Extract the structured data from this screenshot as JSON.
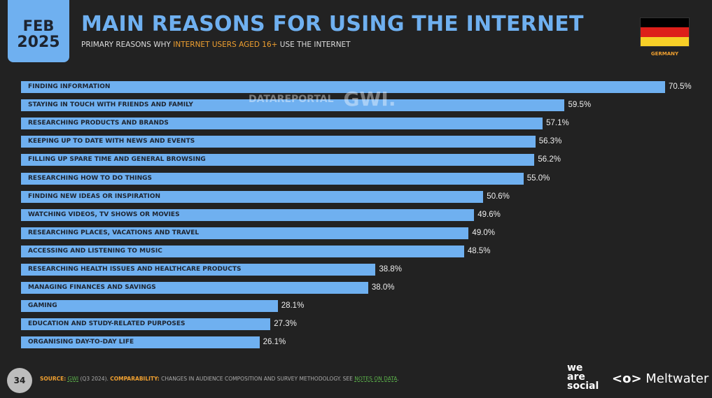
{
  "header": {
    "month": "FEB",
    "year": "2025",
    "title": "MAIN REASONS FOR USING THE INTERNET",
    "subtitle_pre": "PRIMARY REASONS WHY ",
    "subtitle_highlight": "INTERNET USERS AGED 16+",
    "subtitle_post": " USE THE INTERNET",
    "country": "GERMANY",
    "flag_colors": [
      "#000000",
      "#dd1f1a",
      "#f7cf27"
    ]
  },
  "watermark": {
    "datareportal": "DATAREPORTAL",
    "gwi": "GWI."
  },
  "chart_data": {
    "type": "bar",
    "orientation": "horizontal",
    "categories": [
      "FINDING INFORMATION",
      "STAYING IN TOUCH WITH FRIENDS AND FAMILY",
      "RESEARCHING PRODUCTS AND BRANDS",
      "KEEPING UP TO DATE WITH NEWS AND EVENTS",
      "FILLING UP SPARE TIME AND GENERAL BROWSING",
      "RESEARCHING HOW TO DO THINGS",
      "FINDING NEW IDEAS OR INSPIRATION",
      "WATCHING VIDEOS, TV SHOWS OR MOVIES",
      "RESEARCHING PLACES, VACATIONS AND TRAVEL",
      "ACCESSING AND LISTENING TO MUSIC",
      "RESEARCHING HEALTH ISSUES AND HEALTHCARE PRODUCTS",
      "MANAGING FINANCES AND SAVINGS",
      "GAMING",
      "EDUCATION AND STUDY-RELATED PURPOSES",
      "ORGANISING DAY-TO-DAY LIFE"
    ],
    "values": [
      70.5,
      59.5,
      57.1,
      56.3,
      56.2,
      55.0,
      50.6,
      49.6,
      49.0,
      48.5,
      38.8,
      38.0,
      28.1,
      27.3,
      26.1
    ],
    "value_labels": [
      "70.5%",
      "59.5%",
      "57.1%",
      "56.3%",
      "56.2%",
      "55.0%",
      "50.6%",
      "49.6%",
      "49.0%",
      "48.5%",
      "38.8%",
      "38.0%",
      "28.1%",
      "27.3%",
      "26.1%"
    ],
    "unit": "%",
    "bar_color": "#6fb0f0",
    "grid": false
  },
  "footer": {
    "page": "34",
    "source_label": "SOURCE:",
    "source_link": "GWI",
    "source_detail": " (Q3 2024). ",
    "comparability_label": "COMPARABILITY:",
    "comparability_text": " CHANGES IN AUDIENCE COMPOSITION AND SURVEY METHODOLOGY. SEE ",
    "notes_link": "NOTES ON DATA",
    "end": "."
  },
  "logos": {
    "we_are_social": [
      "we",
      "are",
      "social"
    ],
    "meltwater": "Meltwater"
  }
}
